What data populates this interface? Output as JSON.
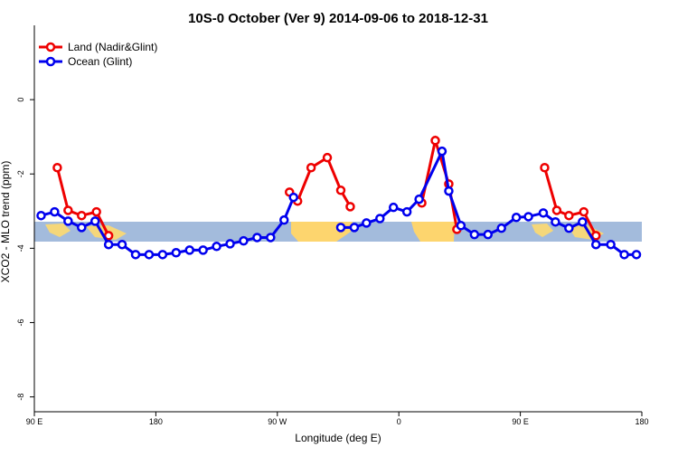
{
  "chart_data": {
    "type": "line",
    "title": "10S-0 October (Ver 9)   2014-09-06 to 2018-12-31",
    "x_label": "Longitude (deg E)",
    "y_label": "XCO2 - MLO trend (ppm)",
    "xlim": [
      90,
      540
    ],
    "ylim": [
      -8.4,
      2.0
    ],
    "xticks": [
      {
        "value": 90,
        "label": "90 E"
      },
      180,
      {
        "value": 270,
        "label": "90 W"
      },
      {
        "value": 360,
        "label": "0"
      },
      {
        "value": 450,
        "label": "90 E"
      },
      {
        "value": 540,
        "label": "180"
      }
    ],
    "yticks": [
      0,
      -2,
      -4,
      -6,
      -8
    ],
    "legend": "top-left",
    "series": [
      {
        "name": "Land (Nadir&Glint)",
        "color": "#ee0000",
        "x": [
          107,
          115,
          125,
          136,
          145,
          null,
          279,
          285,
          295,
          307,
          317,
          324,
          null,
          377,
          387,
          397,
          403,
          null,
          468,
          477,
          486,
          497,
          506
        ],
        "values": [
          -1.83,
          -2.98,
          -3.12,
          -3.02,
          -3.66,
          null,
          -2.49,
          -2.73,
          -1.83,
          -1.56,
          -2.44,
          -2.88,
          null,
          -2.78,
          -1.1,
          -2.27,
          -3.49,
          null,
          -1.83,
          -2.98,
          -3.12,
          -3.02,
          -3.66
        ]
      },
      {
        "name": "Ocean (Glint)",
        "color": "#0000ee",
        "x": [
          95,
          105,
          115,
          125,
          135,
          145,
          155,
          165,
          175,
          185,
          195,
          205,
          215,
          225,
          235,
          245,
          255,
          265,
          275,
          282,
          null,
          317,
          327,
          336,
          346,
          356,
          366,
          375,
          392,
          397,
          406,
          416,
          426,
          436,
          447,
          456,
          467,
          476,
          486,
          496,
          506,
          517,
          527,
          536
        ],
        "values": [
          -3.12,
          -3.02,
          -3.27,
          -3.44,
          -3.27,
          -3.9,
          -3.9,
          -4.17,
          -4.17,
          -4.17,
          -4.12,
          -4.05,
          -4.05,
          -3.95,
          -3.88,
          -3.8,
          -3.71,
          -3.71,
          -3.24,
          -2.63,
          null,
          -3.44,
          -3.44,
          -3.32,
          -3.2,
          -2.9,
          -3.02,
          -2.68,
          -1.39,
          -2.46,
          -3.39,
          -3.63,
          -3.63,
          -3.46,
          -3.17,
          -3.15,
          -3.05,
          -3.29,
          -3.46,
          -3.29,
          -3.9,
          -3.9,
          -4.17,
          -4.17
        ]
      }
    ]
  }
}
